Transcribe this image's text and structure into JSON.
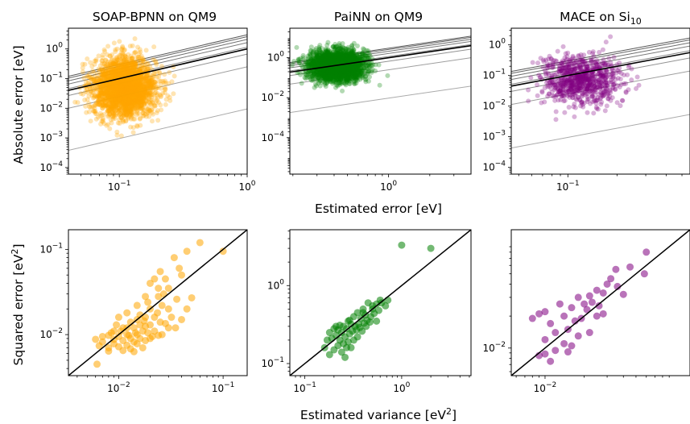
{
  "figure": {
    "top_xlabel": "Estimated error [eV]",
    "top_ylabel": "Absolute error [eV]",
    "bottom_xlabel_base": "Estimated variance [eV",
    "bottom_xlabel_sup": "2",
    "bottom_xlabel_end": "]",
    "bottom_ylabel_base": "Squared error [eV",
    "bottom_ylabel_sup": "2",
    "bottom_ylabel_end": "]"
  },
  "chart_data": [
    {
      "panel": "top-1",
      "type": "scatter",
      "title": "SOAP-BPNN on QM9",
      "title_sub": "",
      "color": "#ffa500",
      "xscale": "log",
      "yscale": "log",
      "xlim": [
        0.04,
        1.0
      ],
      "ylim": [
        6e-05,
        5.0
      ],
      "xticks": [
        {
          "v": 0.1,
          "base": "10",
          "exp": "−1"
        },
        {
          "v": 1.0,
          "base": "10",
          "exp": "0"
        }
      ],
      "yticks": [
        {
          "v": 0.0001,
          "base": "10",
          "exp": "−4"
        },
        {
          "v": 0.001,
          "base": "10",
          "exp": "−3"
        },
        {
          "v": 0.01,
          "base": "10",
          "exp": "−2"
        },
        {
          "v": 0.1,
          "base": "10",
          "exp": "−1"
        },
        {
          "v": 1,
          "base": "10",
          "exp": "0"
        }
      ],
      "reference_lines_prefactor": [
        0.0095,
        0.25,
        0.67,
        1.15,
        1.64,
        2.1,
        2.6,
        3.0
      ],
      "highlight_prefactor": 1.0,
      "points_summary": {
        "n": 2500,
        "x_median": 0.11,
        "x_spread": 0.22,
        "y_median": 0.05,
        "y_spread": 0.8,
        "alpha": 0.3
      }
    },
    {
      "panel": "top-2",
      "type": "scatter",
      "title": "PaiNN on QM9",
      "title_sub": "",
      "color": "#008000",
      "xscale": "log",
      "yscale": "log",
      "xlim": [
        0.19,
        4.0
      ],
      "ylim": [
        1.5e-06,
        30.0
      ],
      "xticks": [
        {
          "v": 1.0,
          "base": "10",
          "exp": "0"
        }
      ],
      "yticks": [
        {
          "v": 0.0001,
          "base": "10",
          "exp": "−4"
        },
        {
          "v": 0.01,
          "base": "10",
          "exp": "−2"
        },
        {
          "v": 1,
          "base": "10",
          "exp": "0"
        }
      ],
      "reference_lines_prefactor": [
        0.0095,
        0.25,
        0.67,
        1.15,
        1.64,
        2.1,
        2.6,
        3.0
      ],
      "highlight_prefactor": 1.0,
      "points_summary": {
        "n": 2500,
        "x_median": 0.42,
        "x_spread": 0.18,
        "y_median": 0.4,
        "y_spread": 0.6,
        "alpha": 0.3
      }
    },
    {
      "panel": "top-3",
      "type": "scatter",
      "title": "MACE on Si",
      "title_sub": "10",
      "color": "#800080",
      "xscale": "log",
      "yscale": "log",
      "xlim": [
        0.045,
        0.56
      ],
      "ylim": [
        6e-05,
        3.5
      ],
      "xticks": [
        {
          "v": 0.1,
          "base": "10",
          "exp": "−1"
        }
      ],
      "yticks": [
        {
          "v": 0.0001,
          "base": "10",
          "exp": "−4"
        },
        {
          "v": 0.001,
          "base": "10",
          "exp": "−3"
        },
        {
          "v": 0.01,
          "base": "10",
          "exp": "−2"
        },
        {
          "v": 0.1,
          "base": "10",
          "exp": "−1"
        },
        {
          "v": 1,
          "base": "10",
          "exp": "0"
        }
      ],
      "reference_lines_prefactor": [
        0.0095,
        0.25,
        0.67,
        1.15,
        1.64,
        2.1,
        2.6,
        3.0
      ],
      "highlight_prefactor": 1.0,
      "points_summary": {
        "n": 800,
        "x_median": 0.12,
        "x_spread": 0.22,
        "y_median": 0.07,
        "y_spread": 0.65,
        "alpha": 0.3
      }
    },
    {
      "panel": "bottom-1",
      "type": "scatter",
      "title": "",
      "title_sub": "",
      "color": "#ffa500",
      "xscale": "log",
      "yscale": "log",
      "xlim": [
        0.0033,
        0.17
      ],
      "ylim": [
        0.0033,
        0.17
      ],
      "xticks": [
        {
          "v": 0.01,
          "base": "10",
          "exp": "−2"
        },
        {
          "v": 0.1,
          "base": "10",
          "exp": "−1"
        }
      ],
      "yticks": [
        {
          "v": 0.01,
          "base": "10",
          "exp": "−2"
        },
        {
          "v": 0.1,
          "base": "10",
          "exp": "−1"
        }
      ],
      "diagonal": true,
      "points": [
        [
          0.1,
          0.095
        ],
        [
          0.06,
          0.12
        ],
        [
          0.045,
          0.095
        ],
        [
          0.034,
          0.08
        ],
        [
          0.038,
          0.06
        ],
        [
          0.04,
          0.05
        ],
        [
          0.025,
          0.055
        ],
        [
          0.022,
          0.045
        ],
        [
          0.028,
          0.045
        ],
        [
          0.02,
          0.04
        ],
        [
          0.024,
          0.035
        ],
        [
          0.018,
          0.028
        ],
        [
          0.03,
          0.035
        ],
        [
          0.026,
          0.022
        ],
        [
          0.015,
          0.022
        ],
        [
          0.02,
          0.02
        ],
        [
          0.012,
          0.018
        ],
        [
          0.015,
          0.015
        ],
        [
          0.018,
          0.016
        ],
        [
          0.022,
          0.016
        ],
        [
          0.01,
          0.016
        ],
        [
          0.013,
          0.014
        ],
        [
          0.016,
          0.013
        ],
        [
          0.02,
          0.013
        ],
        [
          0.025,
          0.014
        ],
        [
          0.011,
          0.012
        ],
        [
          0.014,
          0.012
        ],
        [
          0.017,
          0.011
        ],
        [
          0.022,
          0.011
        ],
        [
          0.03,
          0.012
        ],
        [
          0.009,
          0.011
        ],
        [
          0.012,
          0.01
        ],
        [
          0.015,
          0.01
        ],
        [
          0.019,
          0.0105
        ],
        [
          0.024,
          0.0098
        ],
        [
          0.035,
          0.012
        ],
        [
          0.008,
          0.0098
        ],
        [
          0.01,
          0.0095
        ],
        [
          0.013,
          0.009
        ],
        [
          0.016,
          0.009
        ],
        [
          0.02,
          0.009
        ],
        [
          0.007,
          0.0095
        ],
        [
          0.009,
          0.0088
        ],
        [
          0.011,
          0.0085
        ],
        [
          0.014,
          0.0082
        ],
        [
          0.018,
          0.0085
        ],
        [
          0.007,
          0.0082
        ],
        [
          0.009,
          0.0078
        ],
        [
          0.012,
          0.0075
        ],
        [
          0.015,
          0.0078
        ],
        [
          0.006,
          0.0088
        ],
        [
          0.008,
          0.007
        ],
        [
          0.01,
          0.0072
        ],
        [
          0.013,
          0.0068
        ],
        [
          0.017,
          0.007
        ],
        [
          0.011,
          0.0065
        ],
        [
          0.008,
          0.0064
        ],
        [
          0.014,
          0.0063
        ],
        [
          0.0065,
          0.0074
        ],
        [
          0.021,
          0.0095
        ],
        [
          0.026,
          0.01
        ],
        [
          0.028,
          0.0135
        ],
        [
          0.032,
          0.016
        ],
        [
          0.04,
          0.015
        ],
        [
          0.045,
          0.02
        ],
        [
          0.05,
          0.027
        ],
        [
          0.036,
          0.026
        ],
        [
          0.03,
          0.02
        ],
        [
          0.012,
          0.012
        ],
        [
          0.016,
          0.017
        ],
        [
          0.0095,
          0.013
        ],
        [
          0.018,
          0.0125
        ],
        [
          0.0062,
          0.0045
        ],
        [
          0.0085,
          0.0105
        ],
        [
          0.0105,
          0.011
        ],
        [
          0.0125,
          0.0098
        ],
        [
          0.0145,
          0.0105
        ],
        [
          0.0175,
          0.0145
        ],
        [
          0.0235,
          0.018
        ],
        [
          0.019,
          0.024
        ],
        [
          0.027,
          0.03
        ],
        [
          0.024,
          0.028
        ]
      ]
    },
    {
      "panel": "bottom-2",
      "type": "scatter",
      "title": "",
      "title_sub": "",
      "color": "#008000",
      "xscale": "log",
      "yscale": "log",
      "xlim": [
        0.07,
        5.2
      ],
      "ylim": [
        0.07,
        5.2
      ],
      "xticks": [
        {
          "v": 0.1,
          "base": "10",
          "exp": "−1"
        },
        {
          "v": 1,
          "base": "10",
          "exp": "0"
        }
      ],
      "yticks": [
        {
          "v": 0.1,
          "base": "10",
          "exp": "−1"
        },
        {
          "v": 1,
          "base": "10",
          "exp": "0"
        }
      ],
      "diagonal": true,
      "points": [
        [
          1.0,
          3.3
        ],
        [
          2.0,
          3.0
        ],
        [
          0.6,
          0.65
        ],
        [
          0.55,
          0.58
        ],
        [
          0.45,
          0.6
        ],
        [
          0.5,
          0.5
        ],
        [
          0.4,
          0.5
        ],
        [
          0.42,
          0.42
        ],
        [
          0.35,
          0.45
        ],
        [
          0.32,
          0.4
        ],
        [
          0.38,
          0.38
        ],
        [
          0.28,
          0.35
        ],
        [
          0.3,
          0.32
        ],
        [
          0.25,
          0.3
        ],
        [
          0.27,
          0.28
        ],
        [
          0.33,
          0.3
        ],
        [
          0.36,
          0.32
        ],
        [
          0.22,
          0.27
        ],
        [
          0.24,
          0.25
        ],
        [
          0.2,
          0.28
        ],
        [
          0.21,
          0.23
        ],
        [
          0.18,
          0.25
        ],
        [
          0.19,
          0.21
        ],
        [
          0.23,
          0.2
        ],
        [
          0.26,
          0.22
        ],
        [
          0.29,
          0.24
        ],
        [
          0.31,
          0.26
        ],
        [
          0.34,
          0.27
        ],
        [
          0.37,
          0.29
        ],
        [
          0.41,
          0.33
        ],
        [
          0.44,
          0.36
        ],
        [
          0.48,
          0.4
        ],
        [
          0.52,
          0.44
        ],
        [
          0.58,
          0.48
        ],
        [
          0.68,
          0.55
        ],
        [
          0.25,
          0.18
        ],
        [
          0.28,
          0.19
        ],
        [
          0.22,
          0.17
        ],
        [
          0.3,
          0.16
        ],
        [
          0.17,
          0.2
        ],
        [
          0.16,
          0.16
        ],
        [
          0.2,
          0.15
        ],
        [
          0.24,
          0.14
        ],
        [
          0.27,
          0.16
        ],
        [
          0.32,
          0.2
        ],
        [
          0.35,
          0.22
        ],
        [
          0.26,
          0.12
        ],
        [
          0.39,
          0.26
        ],
        [
          0.43,
          0.3
        ],
        [
          0.47,
          0.34
        ],
        [
          0.21,
          0.3
        ],
        [
          0.18,
          0.13
        ],
        [
          0.23,
          0.31
        ],
        [
          0.29,
          0.36
        ],
        [
          0.4,
          0.45
        ],
        [
          0.5,
          0.55
        ],
        [
          0.62,
          0.6
        ],
        [
          0.72,
          0.65
        ],
        [
          0.55,
          0.35
        ]
      ]
    },
    {
      "panel": "bottom-3",
      "type": "scatter",
      "title": "",
      "title_sub": "",
      "color": "#800080",
      "xscale": "log",
      "yscale": "log",
      "xlim": [
        0.0055,
        0.13
      ],
      "ylim": [
        0.0055,
        0.13
      ],
      "xticks": [
        {
          "v": 0.01,
          "base": "10",
          "exp": "−2"
        }
      ],
      "yticks": [
        {
          "v": 0.01,
          "base": "10",
          "exp": "−2"
        }
      ],
      "diagonal": true,
      "points": [
        [
          0.06,
          0.08
        ],
        [
          0.045,
          0.058
        ],
        [
          0.035,
          0.055
        ],
        [
          0.058,
          0.05
        ],
        [
          0.032,
          0.045
        ],
        [
          0.03,
          0.04
        ],
        [
          0.036,
          0.038
        ],
        [
          0.025,
          0.035
        ],
        [
          0.04,
          0.032
        ],
        [
          0.022,
          0.031
        ],
        [
          0.028,
          0.033
        ],
        [
          0.018,
          0.03
        ],
        [
          0.023,
          0.027
        ],
        [
          0.02,
          0.026
        ],
        [
          0.026,
          0.025
        ],
        [
          0.013,
          0.026
        ],
        [
          0.016,
          0.024
        ],
        [
          0.021,
          0.023
        ],
        [
          0.009,
          0.021
        ],
        [
          0.01,
          0.022
        ],
        [
          0.008,
          0.019
        ],
        [
          0.014,
          0.02
        ],
        [
          0.019,
          0.019
        ],
        [
          0.025,
          0.02
        ],
        [
          0.017,
          0.018
        ],
        [
          0.011,
          0.017
        ],
        [
          0.015,
          0.015
        ],
        [
          0.012,
          0.014
        ],
        [
          0.018,
          0.013
        ],
        [
          0.022,
          0.014
        ],
        [
          0.01,
          0.012
        ],
        [
          0.014,
          0.011
        ],
        [
          0.016,
          0.0105
        ],
        [
          0.012,
          0.0095
        ],
        [
          0.01,
          0.0088
        ],
        [
          0.009,
          0.0085
        ],
        [
          0.015,
          0.0092
        ],
        [
          0.011,
          0.0075
        ],
        [
          0.028,
          0.021
        ]
      ]
    }
  ]
}
